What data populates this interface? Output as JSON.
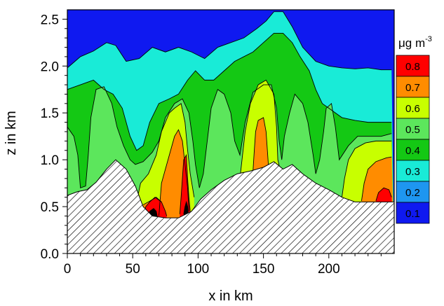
{
  "chart_data": {
    "type": "contour",
    "xlabel": "x in km",
    "ylabel": "z in km",
    "xlim": [
      0,
      250
    ],
    "ylim": [
      0,
      2.6
    ],
    "x_ticks": [
      "0",
      "50",
      "100",
      "150",
      "200"
    ],
    "y_ticks": [
      "0.0",
      "0.5",
      "1.0",
      "1.5",
      "2.0",
      "2.5"
    ],
    "legend": {
      "unit_base": "μg m",
      "unit_exp": "-3",
      "levels": [
        {
          "label": "0.8",
          "color": "#ff0000"
        },
        {
          "label": "0.7",
          "color": "#ff8c00"
        },
        {
          "label": "0.6",
          "color": "#c8ff00"
        },
        {
          "label": "0.5",
          "color": "#5ce65c"
        },
        {
          "label": "0.4",
          "color": "#14c814"
        },
        {
          "label": "0.3",
          "color": "#19ebd7"
        },
        {
          "label": "0.2",
          "color": "#1e96f0"
        },
        {
          "label": "0.1",
          "color": "#0f19f0"
        }
      ]
    },
    "terrain": [
      [
        0,
        0.62
      ],
      [
        8,
        0.66
      ],
      [
        15,
        0.68
      ],
      [
        22,
        0.76
      ],
      [
        30,
        0.9
      ],
      [
        37,
        1.0
      ],
      [
        45,
        0.9
      ],
      [
        52,
        0.72
      ],
      [
        58,
        0.5
      ],
      [
        65,
        0.4
      ],
      [
        75,
        0.38
      ],
      [
        85,
        0.38
      ],
      [
        95,
        0.45
      ],
      [
        102,
        0.58
      ],
      [
        110,
        0.68
      ],
      [
        120,
        0.78
      ],
      [
        130,
        0.85
      ],
      [
        140,
        0.88
      ],
      [
        150,
        0.92
      ],
      [
        158,
        0.98
      ],
      [
        165,
        0.9
      ],
      [
        172,
        0.95
      ],
      [
        180,
        0.85
      ],
      [
        190,
        0.75
      ],
      [
        200,
        0.68
      ],
      [
        210,
        0.6
      ],
      [
        220,
        0.55
      ],
      [
        230,
        0.55
      ],
      [
        240,
        0.55
      ],
      [
        248,
        0.55
      ]
    ],
    "contours": [
      {
        "level": 0.2,
        "points": [
          [
            0,
            1.98
          ],
          [
            10,
            2.1
          ],
          [
            20,
            2.16
          ],
          [
            30,
            2.25
          ],
          [
            37,
            2.22
          ],
          [
            45,
            2.05
          ],
          [
            55,
            2.08
          ],
          [
            65,
            2.2
          ],
          [
            75,
            2.15
          ],
          [
            85,
            2.2
          ],
          [
            95,
            2.15
          ],
          [
            105,
            2.08
          ],
          [
            115,
            2.2
          ],
          [
            125,
            2.25
          ],
          [
            135,
            2.3
          ],
          [
            145,
            2.4
          ],
          [
            152,
            2.48
          ],
          [
            158,
            2.58
          ],
          [
            165,
            2.58
          ],
          [
            172,
            2.42
          ],
          [
            180,
            2.2
          ],
          [
            190,
            2.05
          ],
          [
            200,
            2.0
          ],
          [
            210,
            1.98
          ],
          [
            220,
            1.97
          ],
          [
            230,
            1.98
          ],
          [
            240,
            1.96
          ],
          [
            248,
            1.96
          ]
        ]
      },
      {
        "level": 0.3,
        "points": [
          [
            0,
            1.75
          ],
          [
            10,
            1.8
          ],
          [
            20,
            1.85
          ],
          [
            28,
            1.75
          ],
          [
            35,
            1.7
          ],
          [
            42,
            1.55
          ],
          [
            48,
            1.25
          ],
          [
            53,
            1.1
          ],
          [
            58,
            1.15
          ],
          [
            63,
            1.4
          ],
          [
            70,
            1.6
          ],
          [
            78,
            1.65
          ],
          [
            85,
            1.7
          ],
          [
            92,
            1.85
          ],
          [
            98,
            1.95
          ],
          [
            105,
            1.85
          ],
          [
            112,
            1.85
          ],
          [
            120,
            1.95
          ],
          [
            128,
            2.05
          ],
          [
            135,
            2.1
          ],
          [
            142,
            2.15
          ],
          [
            150,
            2.25
          ],
          [
            158,
            2.35
          ],
          [
            165,
            2.35
          ],
          [
            172,
            2.25
          ],
          [
            178,
            2.1
          ],
          [
            185,
            1.95
          ],
          [
            190,
            1.75
          ],
          [
            195,
            1.6
          ],
          [
            200,
            1.55
          ],
          [
            210,
            1.45
          ],
          [
            220,
            1.42
          ],
          [
            230,
            1.4
          ],
          [
            240,
            1.4
          ],
          [
            248,
            1.4
          ]
        ]
      },
      {
        "level": 0.4,
        "points": [
          [
            0,
            1.35
          ],
          [
            5,
            1.25
          ],
          [
            8,
            1.05
          ],
          [
            10,
            0.7
          ],
          [
            14,
            0.72
          ],
          [
            16,
            1.05
          ],
          [
            18,
            1.45
          ],
          [
            22,
            1.75
          ],
          [
            28,
            1.78
          ],
          [
            34,
            1.6
          ],
          [
            38,
            1.35
          ],
          [
            43,
            1.15
          ],
          [
            48,
            1.0
          ],
          [
            52,
            0.95
          ],
          [
            58,
            0.98
          ],
          [
            65,
            1.08
          ],
          [
            70,
            1.2
          ],
          [
            75,
            1.45
          ],
          [
            82,
            1.6
          ],
          [
            88,
            1.65
          ],
          [
            93,
            1.5
          ],
          [
            96,
            1.2
          ],
          [
            98,
            0.95
          ],
          [
            101,
            0.7
          ],
          [
            104,
            0.85
          ],
          [
            107,
            1.2
          ],
          [
            110,
            1.55
          ],
          [
            115,
            1.75
          ],
          [
            120,
            1.7
          ],
          [
            125,
            1.5
          ],
          [
            128,
            1.2
          ],
          [
            132,
            1.05
          ],
          [
            136,
            1.4
          ],
          [
            142,
            1.72
          ],
          [
            150,
            1.8
          ],
          [
            156,
            1.8
          ],
          [
            160,
            1.55
          ],
          [
            162,
            1.2
          ],
          [
            164,
            1.0
          ],
          [
            166,
            1.25
          ],
          [
            170,
            1.5
          ],
          [
            174,
            1.7
          ],
          [
            180,
            1.6
          ],
          [
            184,
            1.4
          ],
          [
            188,
            1.05
          ],
          [
            190,
            0.85
          ],
          [
            193,
            1.0
          ],
          [
            196,
            1.3
          ],
          [
            198,
            1.55
          ],
          [
            202,
            1.6
          ],
          [
            205,
            1.35
          ],
          [
            208,
            1.0
          ],
          [
            215,
            1.15
          ],
          [
            222,
            1.25
          ],
          [
            230,
            1.25
          ],
          [
            240,
            1.25
          ],
          [
            248,
            1.28
          ]
        ]
      },
      {
        "level": 0.5,
        "points": [
          [
            53,
            0.55
          ],
          [
            56,
            0.75
          ],
          [
            62,
            0.85
          ],
          [
            68,
            1.05
          ],
          [
            72,
            1.3
          ],
          [
            78,
            1.5
          ],
          [
            82,
            1.55
          ],
          [
            87,
            1.6
          ],
          [
            90,
            1.4
          ],
          [
            92,
            1.1
          ],
          [
            94,
            0.85
          ],
          [
            97,
            0.6
          ]
        ]
      },
      {
        "level": 0.5,
        "points": [
          [
            132,
            0.8
          ],
          [
            134,
            1.05
          ],
          [
            136,
            1.3
          ],
          [
            140,
            1.6
          ],
          [
            146,
            1.8
          ],
          [
            152,
            1.85
          ],
          [
            158,
            1.7
          ],
          [
            160,
            1.35
          ],
          [
            161,
            1.0
          ],
          [
            163,
            0.88
          ]
        ]
      },
      {
        "level": 0.6,
        "points": [
          [
            70,
            0.4
          ],
          [
            72,
            0.75
          ],
          [
            78,
            1.05
          ],
          [
            82,
            1.25
          ],
          [
            85,
            1.32
          ],
          [
            88,
            1.2
          ],
          [
            90,
            0.95
          ],
          [
            92,
            0.7
          ],
          [
            93,
            0.45
          ]
        ]
      },
      {
        "level": 0.6,
        "points": [
          [
            142,
            0.88
          ],
          [
            143,
            1.1
          ],
          [
            144,
            1.3
          ],
          [
            146,
            1.42
          ],
          [
            150,
            1.45
          ],
          [
            152,
            1.3
          ],
          [
            153,
            1.1
          ],
          [
            154,
            0.9
          ]
        ]
      },
      {
        "level": 0.5,
        "points": [
          [
            210,
            0.6
          ],
          [
            212,
            0.8
          ],
          [
            215,
            1.0
          ],
          [
            220,
            1.12
          ],
          [
            228,
            1.18
          ],
          [
            236,
            1.2
          ],
          [
            244,
            1.2
          ],
          [
            248,
            1.2
          ]
        ]
      },
      {
        "level": 0.6,
        "points": [
          [
            225,
            0.56
          ],
          [
            227,
            0.75
          ],
          [
            230,
            0.9
          ],
          [
            236,
            0.98
          ],
          [
            244,
            1.02
          ],
          [
            248,
            1.03
          ]
        ]
      },
      {
        "level": 0.7,
        "points": [
          [
            236,
            0.56
          ],
          [
            238,
            0.65
          ],
          [
            242,
            0.7
          ],
          [
            246,
            0.68
          ],
          [
            248,
            0.6
          ]
        ]
      },
      {
        "level": 0.6,
        "points": [
          [
            58,
            0.52
          ],
          [
            62,
            0.55
          ],
          [
            68,
            0.6
          ],
          [
            72,
            0.55
          ]
        ]
      },
      {
        "level": 0.7,
        "points": [
          [
            58,
            0.4
          ],
          [
            60,
            0.5
          ],
          [
            63,
            0.55
          ],
          [
            67,
            0.6
          ],
          [
            72,
            0.55
          ],
          [
            75,
            0.45
          ],
          [
            76,
            0.4
          ]
        ]
      },
      {
        "level": 0.7,
        "points": [
          [
            86,
            0.42
          ],
          [
            87,
            0.6
          ],
          [
            88,
            0.8
          ],
          [
            89,
            1.0
          ],
          [
            91,
            1.05
          ],
          [
            92,
            0.8
          ],
          [
            93,
            0.6
          ],
          [
            94,
            0.45
          ]
        ]
      },
      {
        "level": 0.8,
        "points": [
          [
            62,
            0.38
          ],
          [
            63,
            0.45
          ],
          [
            66,
            0.48
          ],
          [
            68,
            0.45
          ],
          [
            69,
            0.38
          ]
        ]
      },
      {
        "level": 0.8,
        "points": [
          [
            89,
            0.42
          ],
          [
            90,
            0.5
          ],
          [
            91,
            0.55
          ],
          [
            92,
            0.5
          ],
          [
            92.5,
            0.42
          ]
        ]
      }
    ],
    "grid": false
  }
}
